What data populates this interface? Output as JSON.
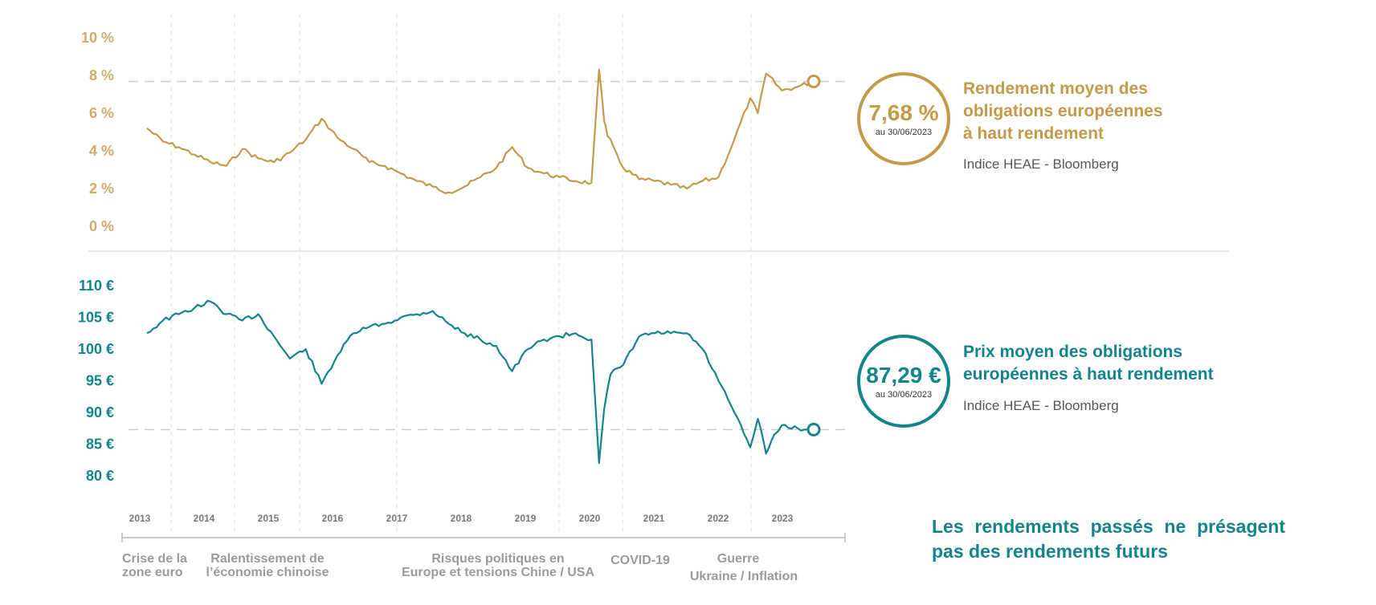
{
  "colors": {
    "yield": "#c4994a",
    "price": "#13838e",
    "grid": "#e2e2e2",
    "reference": "#cccccc",
    "axis": "#bbbbbb"
  },
  "chart_data": [
    {
      "type": "line",
      "name_label": "Rendement moyen des obligations européennes à haut rendement",
      "source": "Indice HEAE - Bloomberg",
      "highlight_value": "7,68 %",
      "highlight_date": "au 30/06/2023",
      "reference_line": 7.68,
      "ylim": [
        0,
        10
      ],
      "yticks": [
        "10 %",
        "8 %",
        "6 %",
        "4 %",
        "2 %",
        "0 %"
      ],
      "ytick_values": [
        10,
        8,
        6,
        4,
        2,
        0
      ],
      "x": [
        2013.0,
        2013.25,
        2013.5,
        2013.75,
        2014.0,
        2014.25,
        2014.5,
        2014.75,
        2015.0,
        2015.25,
        2015.5,
        2015.75,
        2016.0,
        2016.25,
        2016.5,
        2016.75,
        2017.0,
        2017.25,
        2017.5,
        2017.75,
        2018.0,
        2018.25,
        2018.5,
        2018.75,
        2019.0,
        2019.25,
        2019.5,
        2019.75,
        2020.0,
        2020.12,
        2020.2,
        2020.25,
        2020.35,
        2020.5,
        2020.75,
        2021.0,
        2021.25,
        2021.5,
        2021.75,
        2022.0,
        2022.25,
        2022.5,
        2022.62,
        2022.75,
        2023.0,
        2023.25,
        2023.5
      ],
      "values": [
        5.2,
        4.5,
        4.2,
        3.8,
        3.4,
        3.2,
        4.1,
        3.6,
        3.4,
        3.9,
        4.6,
        5.7,
        4.7,
        4.1,
        3.4,
        3.2,
        2.8,
        2.4,
        2.1,
        1.8,
        2.1,
        2.6,
        3.1,
        4.2,
        3.1,
        2.8,
        2.6,
        2.4,
        2.3,
        8.3,
        5.6,
        4.8,
        4.2,
        3.1,
        2.5,
        2.4,
        2.2,
        2.0,
        2.4,
        2.6,
        4.6,
        6.8,
        6.0,
        8.1,
        7.2,
        7.4,
        7.68
      ]
    },
    {
      "type": "line",
      "name_label": "Prix moyen des obligations européennes à haut rendement",
      "source": "Indice HEAE - Bloomberg",
      "highlight_value": "87,29 €",
      "highlight_date": "au 30/06/2023",
      "reference_line": 87.29,
      "ylim": [
        80,
        110
      ],
      "yticks": [
        "110 €",
        "105 €",
        "100 €",
        "95 €",
        "90 €",
        "85 €",
        "80 €"
      ],
      "ytick_values": [
        110,
        105,
        100,
        95,
        90,
        85,
        80
      ],
      "x": [
        2013.0,
        2013.25,
        2013.5,
        2013.75,
        2014.0,
        2014.25,
        2014.5,
        2014.75,
        2015.0,
        2015.25,
        2015.5,
        2015.75,
        2016.0,
        2016.25,
        2016.5,
        2016.75,
        2017.0,
        2017.25,
        2017.5,
        2017.75,
        2018.0,
        2018.25,
        2018.5,
        2018.75,
        2019.0,
        2019.25,
        2019.5,
        2019.75,
        2020.0,
        2020.12,
        2020.2,
        2020.3,
        2020.5,
        2020.75,
        2021.0,
        2021.25,
        2021.5,
        2021.75,
        2022.0,
        2022.25,
        2022.5,
        2022.62,
        2022.75,
        2022.88,
        2023.0,
        2023.25,
        2023.5
      ],
      "values": [
        102.5,
        104.5,
        105.5,
        106.5,
        107.5,
        105.5,
        104.5,
        105.5,
        102.0,
        98.5,
        100.0,
        94.5,
        99.0,
        102.5,
        103.5,
        104.0,
        105.0,
        105.5,
        106.0,
        104.0,
        102.5,
        101.5,
        100.5,
        96.5,
        100.0,
        101.5,
        102.0,
        102.5,
        101.5,
        82.0,
        90.5,
        96.0,
        97.5,
        102.0,
        102.5,
        102.5,
        102.5,
        100.0,
        95.0,
        90.0,
        84.5,
        89.0,
        83.5,
        86.5,
        88.0,
        87.5,
        87.29
      ]
    }
  ],
  "years": [
    "2013",
    "2014",
    "2015",
    "2016",
    "2017",
    "2018",
    "2019",
    "2020",
    "2021",
    "2022",
    "2023"
  ],
  "events": {
    "euro_crisis_l1": "Crise de la",
    "euro_crisis_l2": "zone euro",
    "china_l1": "Ralentissement de",
    "china_l2": "l’économie chinoise",
    "political_l1": "Risques politiques en",
    "political_l2": "Europe et tensions Chine / USA",
    "covid": "COVID-19",
    "war_l1": "Guerre",
    "war_l2": "Ukraine / Inflation"
  },
  "side": {
    "yield_title_l1": "Rendement moyen des",
    "yield_title_l2": "obligations européennes",
    "yield_title_l3": "à haut rendement",
    "price_title_l1": "Prix moyen des obligations",
    "price_title_l2": "européennes à haut rendement"
  },
  "disclaimer": "Les rendements passés ne présagent pas des rendements futurs"
}
